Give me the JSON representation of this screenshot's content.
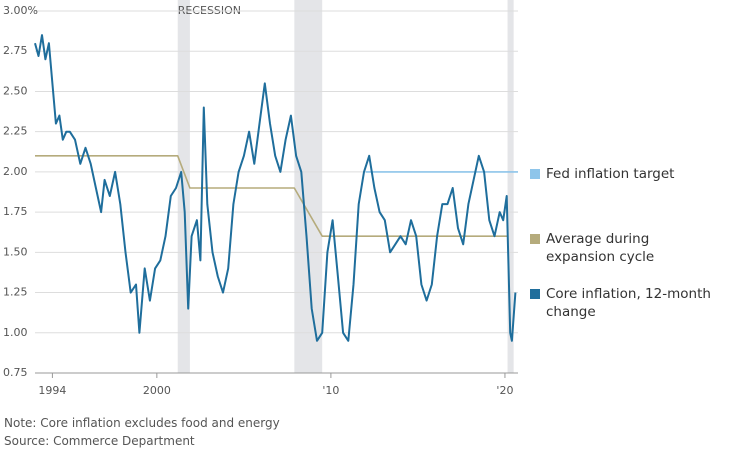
{
  "chart_data": {
    "type": "line",
    "annotation": "RECESSION",
    "recessions": [
      [
        2001.2,
        2001.9
      ],
      [
        2007.9,
        2009.5
      ],
      [
        2020.15,
        2020.5
      ]
    ],
    "xlim": [
      1993,
      2020.75
    ],
    "xticks": [
      1994,
      2000,
      {
        "value": 2010,
        "label": "'10"
      },
      {
        "value": 2020,
        "label": "'20"
      }
    ],
    "ylim": [
      0.75,
      3.0
    ],
    "yticks": [
      0.75,
      {
        "value": 1.0,
        "label": "1.00"
      },
      1.25,
      {
        "value": 1.5,
        "label": "1.50"
      },
      1.75,
      {
        "value": 2.0,
        "label": "2.00"
      },
      2.25,
      {
        "value": 2.5,
        "label": "2.50"
      },
      2.75,
      {
        "value": 3.0,
        "label": "3.00%"
      }
    ],
    "grid": true,
    "legend": "right",
    "series": [
      {
        "name": "Fed inflation target",
        "color": "#8ec5ea",
        "x": [
          2012.0,
          2020.75
        ],
        "values": [
          2.0,
          2.0
        ]
      },
      {
        "name": "Average during expansion cycle",
        "color": "#b5ab7c",
        "x": [
          1993.0,
          2001.2,
          2001.9,
          2007.9,
          2009.5,
          2020.2
        ],
        "values": [
          2.1,
          2.1,
          1.9,
          1.9,
          1.6,
          1.6
        ]
      },
      {
        "name": "Core inflation, 12-month change",
        "color": "#1f6e9c",
        "x": [
          1993.0,
          1993.2,
          1993.4,
          1993.6,
          1993.8,
          1994.0,
          1994.2,
          1994.4,
          1994.6,
          1994.8,
          1995.0,
          1995.3,
          1995.6,
          1995.9,
          1996.2,
          1996.5,
          1996.8,
          1997.0,
          1997.3,
          1997.6,
          1997.9,
          1998.2,
          1998.5,
          1998.8,
          1999.0,
          1999.3,
          1999.6,
          1999.9,
          2000.2,
          2000.5,
          2000.8,
          2001.1,
          2001.4,
          2001.6,
          2001.8,
          2002.0,
          2002.3,
          2002.5,
          2002.7,
          2002.9,
          2003.2,
          2003.5,
          2003.8,
          2004.1,
          2004.4,
          2004.7,
          2005.0,
          2005.3,
          2005.6,
          2005.9,
          2006.2,
          2006.5,
          2006.8,
          2007.1,
          2007.4,
          2007.7,
          2008.0,
          2008.3,
          2008.6,
          2008.9,
          2009.2,
          2009.5,
          2009.8,
          2010.1,
          2010.4,
          2010.7,
          2011.0,
          2011.3,
          2011.6,
          2011.9,
          2012.2,
          2012.5,
          2012.8,
          2013.1,
          2013.4,
          2013.7,
          2014.0,
          2014.3,
          2014.6,
          2014.9,
          2015.2,
          2015.5,
          2015.8,
          2016.1,
          2016.4,
          2016.7,
          2017.0,
          2017.3,
          2017.6,
          2017.9,
          2018.2,
          2018.5,
          2018.8,
          2019.1,
          2019.4,
          2019.7,
          2019.9,
          2020.1,
          2020.3,
          2020.4,
          2020.6
        ],
        "values": [
          2.8,
          2.72,
          2.85,
          2.7,
          2.8,
          2.55,
          2.3,
          2.35,
          2.2,
          2.25,
          2.25,
          2.2,
          2.05,
          2.15,
          2.05,
          1.9,
          1.75,
          1.95,
          1.85,
          2.0,
          1.8,
          1.5,
          1.25,
          1.3,
          1.0,
          1.4,
          1.2,
          1.4,
          1.45,
          1.6,
          1.85,
          1.9,
          2.0,
          1.75,
          1.15,
          1.6,
          1.7,
          1.45,
          2.4,
          1.8,
          1.5,
          1.35,
          1.25,
          1.4,
          1.8,
          2.0,
          2.1,
          2.25,
          2.05,
          2.3,
          2.55,
          2.3,
          2.1,
          2.0,
          2.2,
          2.35,
          2.1,
          2.0,
          1.6,
          1.15,
          0.95,
          1.0,
          1.5,
          1.7,
          1.35,
          1.0,
          0.95,
          1.3,
          1.8,
          2.0,
          2.1,
          1.9,
          1.75,
          1.7,
          1.5,
          1.55,
          1.6,
          1.55,
          1.7,
          1.6,
          1.3,
          1.2,
          1.3,
          1.6,
          1.8,
          1.8,
          1.9,
          1.65,
          1.55,
          1.8,
          1.95,
          2.1,
          2.0,
          1.7,
          1.6,
          1.75,
          1.7,
          1.85,
          1.0,
          0.95,
          1.25
        ]
      }
    ],
    "note": "Note: Core inflation excludes food and energy",
    "source": "Source: Commerce Department"
  }
}
